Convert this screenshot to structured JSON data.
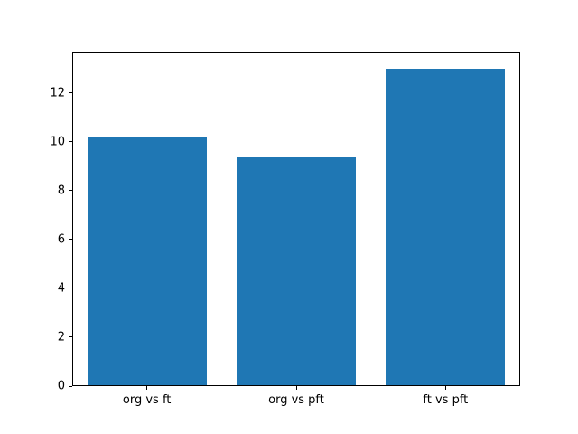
{
  "figure": {
    "background": "#ffffff",
    "bar_color": "#1f77b4",
    "spine_color": "#000000",
    "tick_label_color": "#000000"
  },
  "chart_data": {
    "type": "bar",
    "title": "",
    "xlabel": "",
    "ylabel": "",
    "categories": [
      "org vs ft",
      "org vs pft",
      "ft vs pft"
    ],
    "values": [
      10.2,
      9.35,
      13.0
    ],
    "yticks": [
      0,
      2,
      4,
      6,
      8,
      10,
      12
    ],
    "ytick_labels": [
      "0",
      "2",
      "4",
      "6",
      "8",
      "10",
      "12"
    ],
    "ylim": [
      0,
      13.65
    ],
    "bar_width_fraction": 0.8,
    "grid": false,
    "legend": null
  }
}
